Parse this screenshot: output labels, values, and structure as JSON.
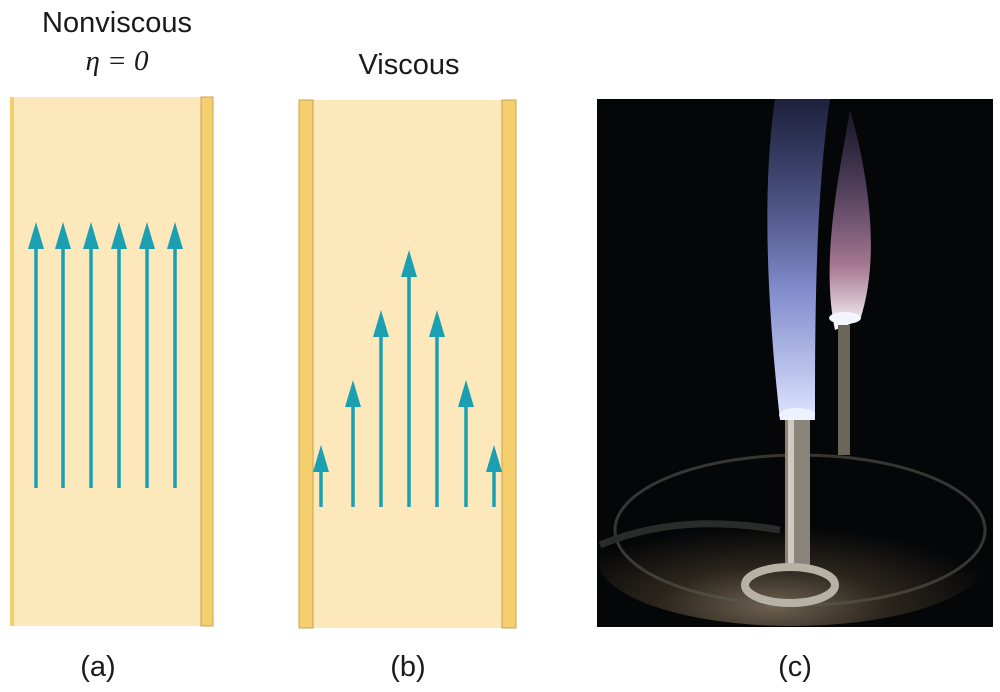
{
  "panel_a": {
    "title": "Nonviscous",
    "subtitle": "η = 0",
    "label": "(a)"
  },
  "panel_b": {
    "title": "Viscous",
    "label": "(b)"
  },
  "panel_c": {
    "label": "(c)"
  },
  "colors": {
    "fluid": "#fde8bc",
    "wall": "#f5cf6e",
    "wall_edge": "#c9a055",
    "arrow": "#1aa0b0",
    "photo_bg": "#050608",
    "flame": "#8a96e6"
  }
}
